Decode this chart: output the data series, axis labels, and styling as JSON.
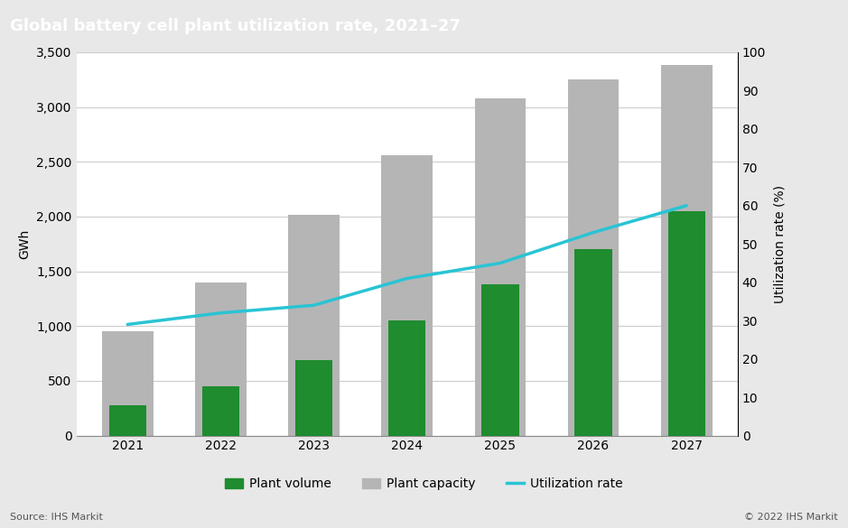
{
  "title": "Global battery cell plant utilization rate, 2021–27",
  "years": [
    2021,
    2022,
    2023,
    2024,
    2025,
    2026,
    2027
  ],
  "plant_volume": [
    275,
    450,
    690,
    1050,
    1380,
    1700,
    2050
  ],
  "plant_capacity": [
    950,
    1400,
    2020,
    2560,
    3080,
    3250,
    3380
  ],
  "utilization_rate": [
    29,
    32,
    34,
    41,
    45,
    53,
    60
  ],
  "volume_bar_width": 0.4,
  "capacity_bar_width": 0.55,
  "volume_color": "#1e8c2f",
  "capacity_color": "#b5b5b5",
  "util_color": "#29c4d4",
  "ylabel_left": "GWh",
  "ylabel_right": "Utilization rate (%)",
  "ylim_left": [
    0,
    3500
  ],
  "ylim_right": [
    0,
    100
  ],
  "yticks_left": [
    0,
    500,
    1000,
    1500,
    2000,
    2500,
    3000,
    3500
  ],
  "yticks_right": [
    0,
    10,
    20,
    30,
    40,
    50,
    60,
    70,
    80,
    90,
    100
  ],
  "title_bg_color": "#737373",
  "title_text_color": "#ffffff",
  "bg_color": "#e8e8e8",
  "plot_bg_color": "#ffffff",
  "source_text": "Source: IHS Markit",
  "copyright_text": "© 2022 IHS Markit",
  "legend_volume": "Plant volume",
  "legend_capacity": "Plant capacity",
  "legend_util": "Utilization rate",
  "grid_color": "#cccccc",
  "title_fontsize": 13,
  "axis_fontsize": 10,
  "ylabel_fontsize": 10
}
